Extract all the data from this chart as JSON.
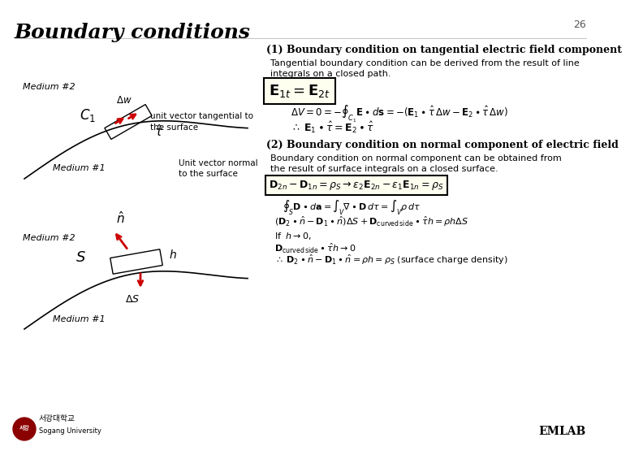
{
  "title": "Boundary conditions",
  "slide_number": "26",
  "bg_color": "#ffffff",
  "title_color": "#000000",
  "section1_title": "(1) Boundary condition on tangential electric field component",
  "section1_desc": "Tangential boundary condition can be derived from the result of line\nintegrals on a closed path.",
  "section2_title": "(2) Boundary condition on normal component of electric field",
  "section2_desc": "Boundary condition on normal component can be obtained from\nthe result of surface integrals on a closed surface.",
  "emlab_text": "EMLAB"
}
